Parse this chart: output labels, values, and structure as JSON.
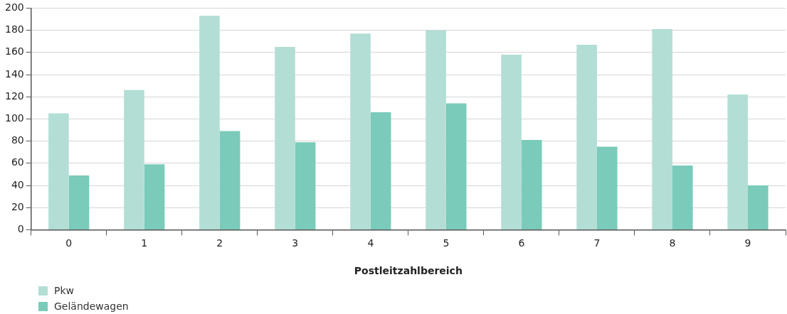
{
  "chart_data": {
    "type": "bar",
    "xlabel": "Postleitzahlbereich",
    "categories": [
      "0",
      "1",
      "2",
      "3",
      "4",
      "5",
      "6",
      "7",
      "8",
      "9"
    ],
    "series": [
      {
        "name": "Pkw",
        "color": "#b3ded5",
        "values": [
          105,
          126,
          193,
          165,
          177,
          180,
          158,
          167,
          181,
          122
        ]
      },
      {
        "name": "Geländewagen",
        "color": "#7acbb9",
        "values": [
          49,
          59,
          89,
          79,
          106,
          114,
          81,
          75,
          58,
          40
        ]
      }
    ],
    "ylim": [
      0,
      200
    ],
    "yticks": [
      0,
      20,
      40,
      60,
      80,
      100,
      120,
      140,
      160,
      180,
      200
    ],
    "grid": "y",
    "legend": "bottom left"
  }
}
